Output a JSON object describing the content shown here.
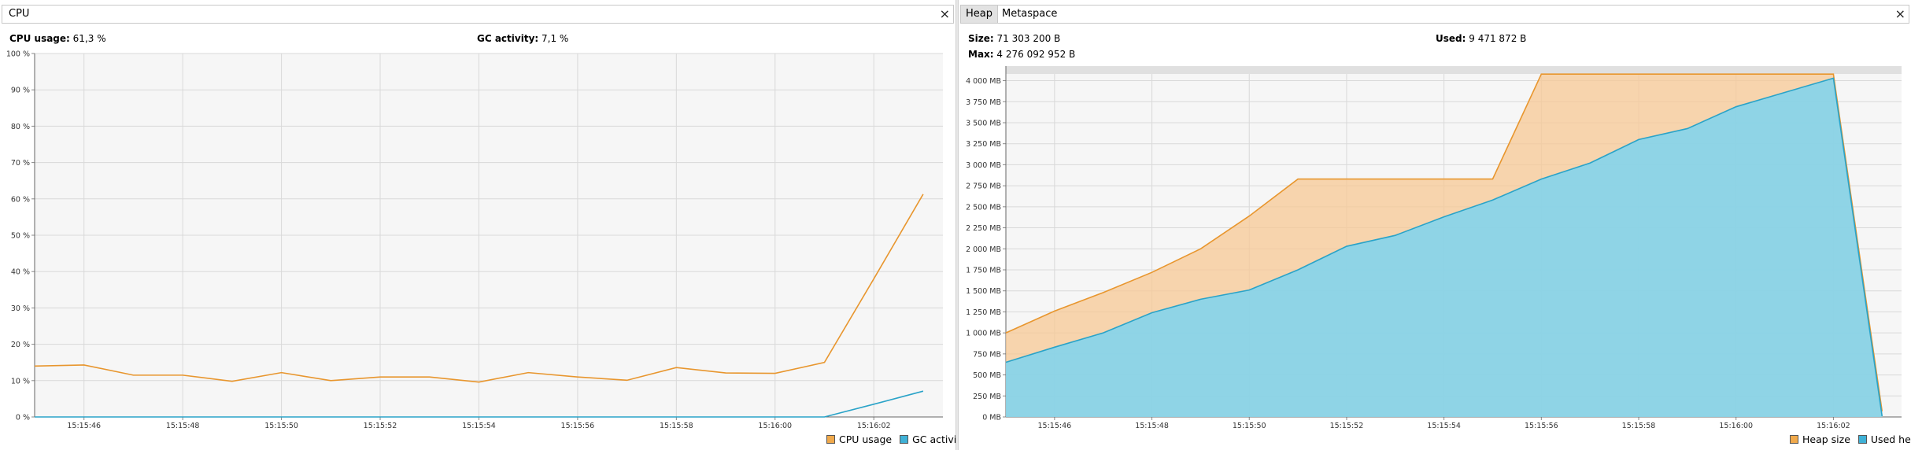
{
  "cpu": {
    "tab_label": "CPU",
    "close_label": "×",
    "cpu_usage_label": "CPU usage:",
    "cpu_usage_value": "61,3 %",
    "gc_activity_label": "GC activity:",
    "gc_activity_value": "7,1 %",
    "legend": [
      "CPU usage",
      "GC activity"
    ]
  },
  "memory": {
    "tabs": [
      "Heap",
      "Metaspace"
    ],
    "close_label": "×",
    "size_label": "Size:",
    "size_value": "71 303 200 B",
    "used_label": "Used:",
    "used_value": "9 471 872 B",
    "max_label": "Max:",
    "max_value": "4 276 092 952 B",
    "legend": [
      "Heap size",
      "Used heap"
    ]
  },
  "colors": {
    "orange": "#e8962e",
    "orange_fill": "#f7c894",
    "blue": "#2aa3c8",
    "blue_fill": "#7dd4f0",
    "grid": "#d9d9d9",
    "plot_bg": "#f6f6f6"
  },
  "chart_data": [
    {
      "type": "line",
      "x": [
        "15:15:45",
        "15:15:46",
        "15:15:47",
        "15:15:48",
        "15:15:49",
        "15:15:50",
        "15:15:51",
        "15:15:52",
        "15:15:53",
        "15:15:54",
        "15:15:55",
        "15:15:56",
        "15:15:57",
        "15:15:58",
        "15:15:59",
        "15:16:00",
        "15:16:01",
        "15:16:02",
        "15:16:03"
      ],
      "tick_labels": [
        "15:15:46",
        "15:15:48",
        "15:15:50",
        "15:15:52",
        "15:15:54",
        "15:15:56",
        "15:15:58",
        "15:16:00",
        "15:16:02"
      ],
      "y_ticks": [
        "0 %",
        "10 %",
        "20 %",
        "30 %",
        "40 %",
        "50 %",
        "60 %",
        "70 %",
        "80 %",
        "90 %",
        "100 %"
      ],
      "ylim": [
        0,
        100
      ],
      "series": [
        {
          "name": "CPU usage",
          "values": [
            14,
            14.3,
            11.5,
            11.5,
            9.8,
            12.2,
            10,
            11,
            11,
            9.6,
            12.2,
            11,
            10.1,
            13.6,
            12.1,
            12,
            15,
            38,
            61.3
          ]
        },
        {
          "name": "GC activity",
          "values": [
            0,
            0,
            0,
            0,
            0,
            0,
            0,
            0,
            0,
            0,
            0,
            0,
            0,
            0,
            0,
            0,
            0,
            3.5,
            7.1
          ]
        }
      ]
    },
    {
      "type": "area",
      "x": [
        "15:15:45",
        "15:15:46",
        "15:15:47",
        "15:15:48",
        "15:15:49",
        "15:15:50",
        "15:15:51",
        "15:15:52",
        "15:15:53",
        "15:15:54",
        "15:15:55",
        "15:15:56",
        "15:15:57",
        "15:15:58",
        "15:15:59",
        "15:16:00",
        "15:16:01",
        "15:16:02",
        "15:16:03"
      ],
      "tick_labels": [
        "15:15:46",
        "15:15:48",
        "15:15:50",
        "15:15:52",
        "15:15:54",
        "15:15:56",
        "15:15:58",
        "15:16:00",
        "15:16:02"
      ],
      "y_ticks": [
        "0 MB",
        "250 MB",
        "500 MB",
        "750 MB",
        "1 000 MB",
        "1 250 MB",
        "1 500 MB",
        "1 750 MB",
        "2 000 MB",
        "2 250 MB",
        "2 500 MB",
        "2 750 MB",
        "3 000 MB",
        "3 250 MB",
        "3 500 MB",
        "3 750 MB",
        "4 000 MB"
      ],
      "ylim": [
        0,
        4080
      ],
      "series": [
        {
          "name": "Heap size",
          "values": [
            1000,
            1260,
            1480,
            1720,
            2000,
            2390,
            2830,
            2830,
            2830,
            2830,
            2830,
            4078,
            4078,
            4078,
            4078,
            4078,
            4078,
            4078,
            68
          ]
        },
        {
          "name": "Used heap",
          "values": [
            650,
            830,
            1000,
            1240,
            1400,
            1510,
            1750,
            2030,
            2160,
            2380,
            2580,
            2830,
            3020,
            3300,
            3430,
            3690,
            3860,
            4030,
            9
          ]
        }
      ]
    }
  ]
}
